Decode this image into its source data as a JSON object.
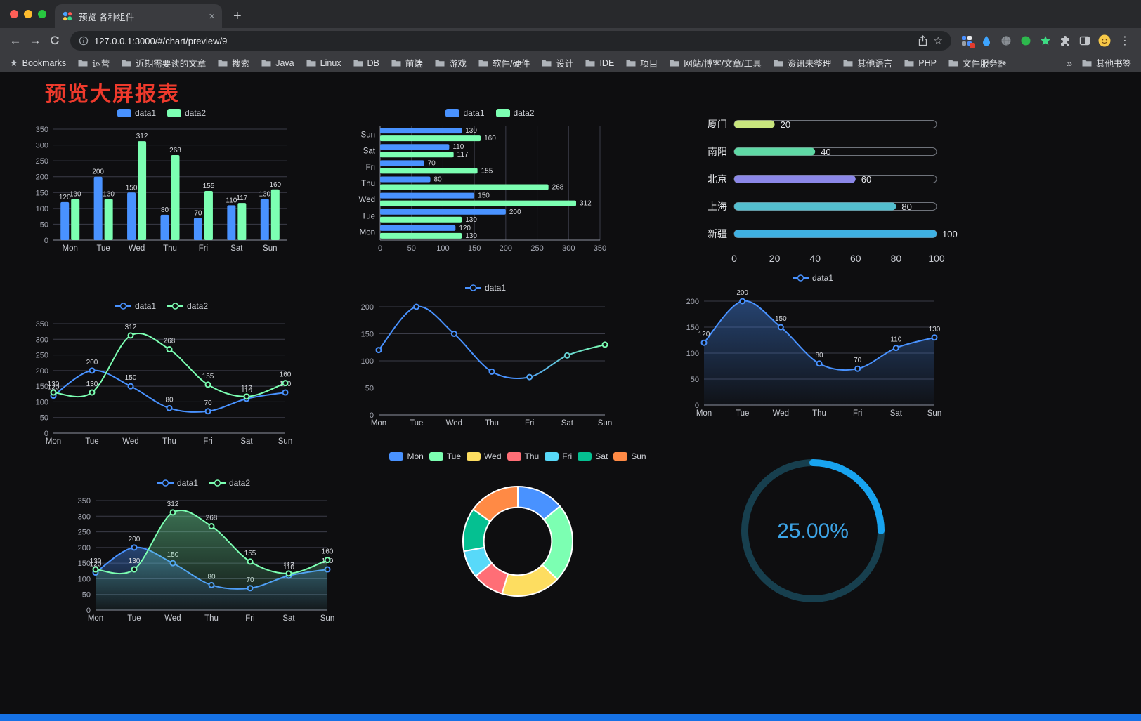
{
  "window": {
    "tab_title": "预览-各种组件",
    "url": "127.0.0.1:3000/#/chart/preview/9"
  },
  "icons": {
    "close_tab": "×",
    "new_tab": "+",
    "back_arrow": "←",
    "forward_arrow": "→",
    "menu_kebab": "⋮",
    "bookmark_star": "☆",
    "bookmarks_root_star": "★"
  },
  "bookmarks_bar": {
    "root_label": "Bookmarks",
    "items": [
      "运营",
      "近期需要读的文章",
      "搜索",
      "Java",
      "Linux",
      "DB",
      "前端",
      "游戏",
      "软件/硬件",
      "设计",
      "IDE",
      "项目",
      "网站/博客/文章/工具",
      "资讯未整理",
      "其他语言",
      "PHP",
      "文件服务器"
    ],
    "overflow_label": "»",
    "other_label": "其他书签"
  },
  "page": {
    "title": "预览大屏报表",
    "title_color": "#ee3a2c",
    "footer_color": "#1672e6"
  },
  "chart_data": [
    {
      "id": "bar-grouped",
      "type": "bar",
      "categories": [
        "Mon",
        "Tue",
        "Wed",
        "Thu",
        "Fri",
        "Sat",
        "Sun"
      ],
      "series": [
        {
          "name": "data1",
          "color": "#4992ff",
          "values": [
            120,
            200,
            150,
            80,
            70,
            110,
            130
          ]
        },
        {
          "name": "data2",
          "color": "#7cffb2",
          "values": [
            130,
            130,
            312,
            268,
            155,
            117,
            160
          ]
        }
      ],
      "ylim": [
        0,
        350
      ],
      "ytick": 50,
      "legend": true,
      "value_labels": true
    },
    {
      "id": "bar-horizontal",
      "type": "hbar",
      "categories": [
        "Mon",
        "Tue",
        "Wed",
        "Thu",
        "Fri",
        "Sat",
        "Sun"
      ],
      "series": [
        {
          "name": "data1",
          "color": "#4992ff",
          "values": [
            120,
            200,
            150,
            80,
            70,
            110,
            130
          ]
        },
        {
          "name": "data2",
          "color": "#7cffb2",
          "values": [
            130,
            130,
            312,
            268,
            155,
            117,
            160
          ]
        }
      ],
      "xlim": [
        0,
        350
      ],
      "xtick": 50,
      "legend": true,
      "value_labels": true
    },
    {
      "id": "progress-bars",
      "type": "progress",
      "items": [
        {
          "label": "厦门",
          "value": 20,
          "color": "#c8e57d"
        },
        {
          "label": "南阳",
          "value": 40,
          "color": "#5fd8a5"
        },
        {
          "label": "北京",
          "value": 60,
          "color": "#8b87e8"
        },
        {
          "label": "上海",
          "value": 80,
          "color": "#54bfcf"
        },
        {
          "label": "新疆",
          "value": 100,
          "color": "#3fb1e3"
        }
      ],
      "xmax": 100,
      "xticks": [
        0,
        20,
        40,
        60,
        80,
        100
      ]
    },
    {
      "id": "line-two-series",
      "type": "line",
      "categories": [
        "Mon",
        "Tue",
        "Wed",
        "Thu",
        "Fri",
        "Sat",
        "Sun"
      ],
      "series": [
        {
          "name": "data1",
          "color": "#4992ff",
          "values": [
            120,
            200,
            150,
            80,
            70,
            110,
            130
          ]
        },
        {
          "name": "data2",
          "color": "#7cffb2",
          "values": [
            130,
            130,
            312,
            268,
            155,
            117,
            160
          ]
        }
      ],
      "ylim": [
        0,
        350
      ],
      "ytick": 50,
      "legend": true,
      "value_labels": true,
      "smooth": true
    },
    {
      "id": "line-gradient",
      "type": "line",
      "categories": [
        "Mon",
        "Tue",
        "Wed",
        "Thu",
        "Fri",
        "Sat",
        "Sun"
      ],
      "series": [
        {
          "name": "data1",
          "color": "#4992ff",
          "color2": "#7cffb2",
          "values": [
            120,
            200,
            150,
            80,
            70,
            110,
            130
          ]
        }
      ],
      "ylim": [
        0,
        200
      ],
      "ytick": 50,
      "legend": true,
      "value_labels": false,
      "smooth": true,
      "gradient_stroke": true
    },
    {
      "id": "area-single",
      "type": "line",
      "categories": [
        "Mon",
        "Tue",
        "Wed",
        "Thu",
        "Fri",
        "Sat",
        "Sun"
      ],
      "series": [
        {
          "name": "data1",
          "color": "#4992ff",
          "values": [
            120,
            200,
            150,
            80,
            70,
            110,
            130
          ]
        }
      ],
      "ylim": [
        0,
        200
      ],
      "ytick": 50,
      "legend": true,
      "value_labels": true,
      "smooth": true,
      "area": true
    },
    {
      "id": "area-two-series",
      "type": "line",
      "categories": [
        "Mon",
        "Tue",
        "Wed",
        "Thu",
        "Fri",
        "Sat",
        "Sun"
      ],
      "series": [
        {
          "name": "data1",
          "color": "#4992ff",
          "values": [
            120,
            200,
            150,
            80,
            70,
            110,
            130
          ]
        },
        {
          "name": "data2",
          "color": "#7cffb2",
          "values": [
            130,
            130,
            312,
            268,
            155,
            117,
            160
          ]
        }
      ],
      "ylim": [
        0,
        350
      ],
      "ytick": 50,
      "legend": true,
      "value_labels": true,
      "smooth": true,
      "area": true
    },
    {
      "id": "donut",
      "type": "pie",
      "categories": [
        "Mon",
        "Tue",
        "Wed",
        "Thu",
        "Fri",
        "Sat",
        "Sun"
      ],
      "values": [
        120,
        200,
        150,
        80,
        70,
        110,
        130
      ],
      "colors": [
        "#4992ff",
        "#7cffb2",
        "#fddd60",
        "#ff6e76",
        "#58d9f9",
        "#05c091",
        "#ff8a45"
      ],
      "legend": true,
      "inner_radius_ratio": 0.62
    },
    {
      "id": "gauge",
      "type": "gauge",
      "value": 25,
      "label": "25.00%",
      "color": "#18a3ef",
      "track_color": "#173f4e",
      "text_color": "#3da4e6"
    }
  ]
}
